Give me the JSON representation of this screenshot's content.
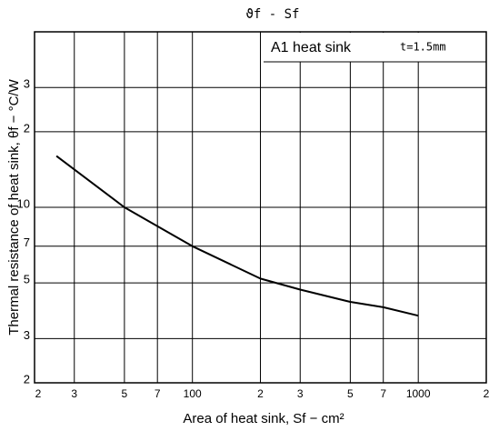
{
  "chart_data": {
    "type": "line",
    "title": "ϑf - Sf",
    "annotation": "A1 heat sink",
    "annotation2": "t=1.5mm",
    "xlabel": "Area of heat sink, Sf − cm²",
    "ylabel": "Thermal resistance of heat sink, θf − °C/W",
    "xscale": "log",
    "yscale": "log",
    "grid": true,
    "xlim": [
      20,
      2000
    ],
    "ylim": [
      2,
      50
    ],
    "xticks": [
      {
        "value": 20,
        "label": "2"
      },
      {
        "value": 30,
        "label": "3"
      },
      {
        "value": 50,
        "label": "5"
      },
      {
        "value": 70,
        "label": "7"
      },
      100,
      {
        "value": 200,
        "label": "2"
      },
      {
        "value": 300,
        "label": "3"
      },
      {
        "value": 500,
        "label": "5"
      },
      {
        "value": 700,
        "label": "7"
      },
      1000,
      {
        "value": 2000,
        "label": "2"
      }
    ],
    "yticks": [
      2,
      3,
      5,
      7,
      10,
      {
        "value": 20,
        "label": "2"
      },
      {
        "value": 30,
        "label": "3"
      }
    ],
    "series": [
      {
        "name": "A1 heat sink",
        "color": "#000000",
        "x": [
          25,
          50,
          100,
          200,
          300,
          500,
          700,
          1000
        ],
        "values": [
          16,
          10,
          7,
          5.2,
          4.7,
          4.2,
          4.0,
          3.7
        ]
      }
    ]
  }
}
